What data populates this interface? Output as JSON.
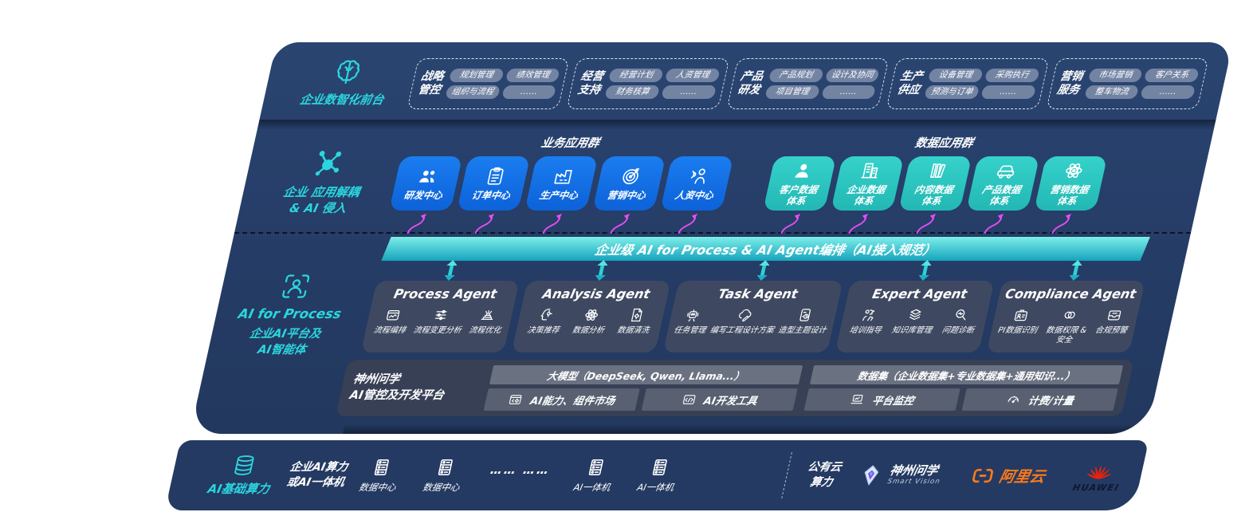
{
  "colors": {
    "navy": "#253b63",
    "teal_accent": "#2bd6de",
    "blue_box": "#1173e8",
    "teal_box": "#2fc9c2",
    "magenta_arrow": "#e84df5",
    "bar_gradient_top": "#7deee9",
    "bar_gradient_bottom": "#14a4bd",
    "aliyun_orange": "#ff7a1a",
    "huawei_red": "#e8220e"
  },
  "front_layer": {
    "label": "企业数智化前台",
    "icon": "brain-icon",
    "groups": [
      {
        "name_lines": [
          "战略",
          "管控"
        ],
        "chips": [
          "规划管理",
          "绩效管理",
          "组织与流程",
          "……"
        ]
      },
      {
        "name_lines": [
          "经营",
          "支持"
        ],
        "chips": [
          "经营计划",
          "人资管理",
          "财务核算",
          "……"
        ]
      },
      {
        "name_lines": [
          "产品",
          "研发"
        ],
        "chips": [
          "产品规划",
          "设计及协同",
          "项目管理",
          "……"
        ]
      },
      {
        "name_lines": [
          "生产",
          "供应"
        ],
        "chips": [
          "设备管理",
          "采购执行",
          "预测与订单",
          "……"
        ]
      },
      {
        "name_lines": [
          "营销",
          "服务"
        ],
        "chips": [
          "市场营销",
          "客户关系",
          "整车物流",
          "……"
        ]
      }
    ]
  },
  "app_layer": {
    "label_lines": [
      "企业 应用解耦",
      "& AI 侵入"
    ],
    "icon": "molecule-icon",
    "business_group": {
      "title": "业务应用群",
      "items": [
        {
          "label": "研发中心",
          "icon": "team-icon"
        },
        {
          "label": "订单中心",
          "icon": "clipboard-icon"
        },
        {
          "label": "生产中心",
          "icon": "factory-icon"
        },
        {
          "label": "营销中心",
          "icon": "target-icon"
        },
        {
          "label": "人资中心",
          "icon": "hr-icon"
        }
      ]
    },
    "data_group": {
      "title": "数据应用群",
      "items": [
        {
          "label": "客户数据体系",
          "label_lines": [
            "客户数据",
            "体系"
          ],
          "icon": "person-icon"
        },
        {
          "label": "企业数据体系",
          "label_lines": [
            "企业数据",
            "体系"
          ],
          "icon": "building-icon"
        },
        {
          "label": "内容数据体系",
          "label_lines": [
            "内容数据",
            "体系"
          ],
          "icon": "library-icon"
        },
        {
          "label": "产品数据体系",
          "label_lines": [
            "产品数据",
            "体系"
          ],
          "icon": "car-icon"
        },
        {
          "label": "营销数据体系",
          "label_lines": [
            "营销数据",
            "体系"
          ],
          "icon": "atom-icon"
        }
      ]
    }
  },
  "orchestration_bar": {
    "label": "企业级 AI for Process & AI Agent编排（AI接入规范）"
  },
  "ai_layer": {
    "label_title": "AI for Process",
    "label_lines": [
      "企业AI平台及",
      "AI智能体"
    ],
    "icon": "person-scan-icon",
    "agents": [
      {
        "title": "Process Agent",
        "items": [
          {
            "label": "流程编排",
            "icon": "flow-icon"
          },
          {
            "label": "流程变更分析",
            "icon": "sliders-icon"
          },
          {
            "label": "流程优化",
            "icon": "optimize-icon"
          }
        ]
      },
      {
        "title": "Analysis Agent",
        "items": [
          {
            "label": "决策推荐",
            "icon": "mind-gear-icon"
          },
          {
            "label": "数据分析",
            "icon": "atom-icon"
          },
          {
            "label": "数据清洗",
            "icon": "doc-gear-icon"
          }
        ]
      },
      {
        "title": "Task Agent",
        "items": [
          {
            "label": "任务管理",
            "icon": "bot-icon"
          },
          {
            "label": "编写工程设计方案",
            "icon": "cloud-edit-icon"
          },
          {
            "label": "造型主题设计",
            "icon": "design-icon"
          }
        ]
      },
      {
        "title": "Expert Agent",
        "items": [
          {
            "label": "培训指导",
            "icon": "training-icon"
          },
          {
            "label": "知识库管理",
            "icon": "layers-icon"
          },
          {
            "label": "问题诊断",
            "icon": "diagnose-icon"
          }
        ]
      },
      {
        "title": "Compliance Agent",
        "items": [
          {
            "label": "PI数据识别",
            "icon": "id-card-icon"
          },
          {
            "label": "数据权限 & 安全",
            "icon": "link-rings-icon"
          },
          {
            "label": "合规预警",
            "icon": "alert-inbox-icon"
          }
        ]
      }
    ]
  },
  "platform": {
    "label_lines": [
      "神州问学",
      "AI管控及开发平台"
    ],
    "left": {
      "header": "大模型（DeepSeek, Qwen, Llama...）",
      "cells": [
        {
          "label": "AI能力、组件市场",
          "icon": "components-icon"
        },
        {
          "label": "AI开发工具",
          "icon": "devtools-icon"
        }
      ]
    },
    "right": {
      "header": "数据集（企业数据集+专业数据集+通用知识...）",
      "cells": [
        {
          "label": "平台监控",
          "icon": "monitor-icon"
        },
        {
          "label": "计费/计量",
          "icon": "gauge-icon"
        }
      ]
    }
  },
  "infra": {
    "label": "AI基础算力",
    "icon": "database-icon",
    "compute_label_lines": [
      "企业AI算力",
      "或AI一体机"
    ],
    "nodes": [
      {
        "label": "数据中心",
        "icon": "server-icon"
      },
      {
        "label": "数据中心",
        "icon": "server-icon"
      },
      {
        "label": "…… ……"
      },
      {
        "label": "AI一体机",
        "icon": "server-icon"
      },
      {
        "label": "AI一体机",
        "icon": "server-icon"
      }
    ],
    "public_cloud_lines": [
      "公有云",
      "算力"
    ],
    "vendors": [
      {
        "name": "神州问学",
        "sub": "Smart Vision",
        "icon": "gem-icon"
      },
      {
        "name": "阿里云",
        "icon": "aliyun-brackets-icon"
      },
      {
        "name": "HUAWEI",
        "icon": "huawei-flower-icon"
      }
    ]
  }
}
